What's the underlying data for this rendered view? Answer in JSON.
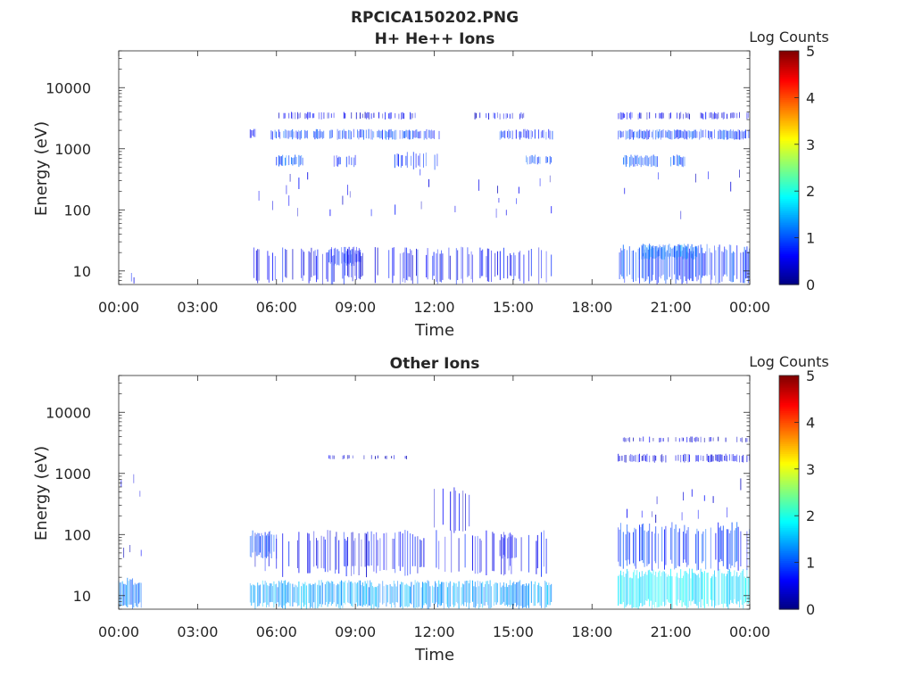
{
  "figure": {
    "title": "RPCICA150202.PNG"
  },
  "colorbar": {
    "label": "Log Counts",
    "ticks": [
      "0",
      "1",
      "2",
      "3",
      "4",
      "5"
    ],
    "range": [
      0,
      5
    ],
    "colormap": "jet"
  },
  "chart_data": [
    {
      "type": "heatmap",
      "title": "H+ He++ Ions",
      "xlabel": "Time",
      "ylabel": "Energy (eV)",
      "x_ticks": [
        "00:00",
        "03:00",
        "06:00",
        "09:00",
        "12:00",
        "15:00",
        "18:00",
        "21:00",
        "00:00"
      ],
      "xlim_hours": [
        0,
        24
      ],
      "y_scale": "log",
      "y_ticks": [
        "10",
        "100",
        "1000",
        "10000"
      ],
      "ylim": [
        6,
        40000
      ],
      "zlim": [
        0,
        5
      ],
      "data_blocks": [
        {
          "t0": 0.2,
          "t1": 0.8,
          "e0": 6,
          "e1": 20,
          "z": 0.6,
          "density": 0.25
        },
        {
          "t0": 0.1,
          "t1": 0.9,
          "e0": 60,
          "e1": 1500,
          "z": 0.5,
          "density": 0.1
        },
        {
          "t0": 5.0,
          "t1": 16.5,
          "e0": 6,
          "e1": 25,
          "z": 0.6,
          "density": 0.45
        },
        {
          "t0": 8.0,
          "t1": 9.2,
          "e0": 12,
          "e1": 25,
          "z": 0.8,
          "density": 0.8
        },
        {
          "t0": 5.0,
          "t1": 16.5,
          "e0": 80,
          "e1": 400,
          "z": 0.5,
          "density": 0.08
        },
        {
          "t0": 5.0,
          "t1": 5.2,
          "e0": 1500,
          "e1": 2200,
          "z": 0.8,
          "density": 0.9
        },
        {
          "t0": 5.8,
          "t1": 11.0,
          "e0": 1400,
          "e1": 2100,
          "z": 0.9,
          "density": 0.75
        },
        {
          "t0": 11.0,
          "t1": 12.5,
          "e0": 1400,
          "e1": 2100,
          "z": 0.8,
          "density": 0.55
        },
        {
          "t0": 14.5,
          "t1": 16.5,
          "e0": 1400,
          "e1": 2100,
          "z": 0.8,
          "density": 0.6
        },
        {
          "t0": 6.0,
          "t1": 11.5,
          "e0": 3000,
          "e1": 4000,
          "z": 0.5,
          "density": 0.45
        },
        {
          "t0": 13.5,
          "t1": 15.5,
          "e0": 3000,
          "e1": 4000,
          "z": 0.5,
          "density": 0.4
        },
        {
          "t0": 6.0,
          "t1": 7.0,
          "e0": 500,
          "e1": 800,
          "z": 1.0,
          "density": 0.8
        },
        {
          "t0": 8.0,
          "t1": 9.0,
          "e0": 500,
          "e1": 800,
          "z": 0.7,
          "density": 0.4
        },
        {
          "t0": 10.5,
          "t1": 12.2,
          "e0": 450,
          "e1": 900,
          "z": 0.8,
          "density": 0.5
        },
        {
          "t0": 15.5,
          "t1": 16.5,
          "e0": 550,
          "e1": 800,
          "z": 1.0,
          "density": 0.85
        },
        {
          "t0": 19.0,
          "t1": 24.0,
          "e0": 6,
          "e1": 28,
          "z": 0.9,
          "density": 0.85
        },
        {
          "t0": 19.8,
          "t1": 22.0,
          "e0": 15,
          "e1": 28,
          "z": 1.2,
          "density": 0.9
        },
        {
          "t0": 19.0,
          "t1": 24.0,
          "e0": 1400,
          "e1": 2100,
          "z": 0.9,
          "density": 0.9
        },
        {
          "t0": 19.0,
          "t1": 24.0,
          "e0": 3000,
          "e1": 4000,
          "z": 0.5,
          "density": 0.5
        },
        {
          "t0": 19.2,
          "t1": 20.5,
          "e0": 500,
          "e1": 800,
          "z": 1.0,
          "density": 0.85
        },
        {
          "t0": 21.0,
          "t1": 21.6,
          "e0": 500,
          "e1": 800,
          "z": 1.0,
          "density": 0.8
        },
        {
          "t0": 19.0,
          "t1": 24.0,
          "e0": 80,
          "e1": 400,
          "z": 0.5,
          "density": 0.08
        }
      ]
    },
    {
      "type": "heatmap",
      "title": "Other Ions",
      "xlabel": "Time",
      "ylabel": "Energy (eV)",
      "x_ticks": [
        "00:00",
        "03:00",
        "06:00",
        "09:00",
        "12:00",
        "15:00",
        "18:00",
        "21:00",
        "00:00"
      ],
      "xlim_hours": [
        0,
        24
      ],
      "y_scale": "log",
      "y_ticks": [
        "10",
        "100",
        "1000",
        "10000"
      ],
      "ylim": [
        6,
        40000
      ],
      "zlim": [
        0,
        5
      ],
      "data_blocks": [
        {
          "t0": 0.0,
          "t1": 0.9,
          "e0": 6,
          "e1": 20,
          "z": 1.2,
          "density": 0.95
        },
        {
          "t0": 0.0,
          "t1": 0.9,
          "e0": 40,
          "e1": 900,
          "z": 0.5,
          "density": 0.25
        },
        {
          "t0": 5.0,
          "t1": 16.5,
          "e0": 6,
          "e1": 18,
          "z": 1.4,
          "density": 0.9
        },
        {
          "t0": 5.0,
          "t1": 16.5,
          "e0": 20,
          "e1": 120,
          "z": 0.6,
          "density": 0.3
        },
        {
          "t0": 5.0,
          "t1": 6.0,
          "e0": 40,
          "e1": 120,
          "z": 0.9,
          "density": 0.8
        },
        {
          "t0": 12.0,
          "t1": 13.5,
          "e0": 100,
          "e1": 600,
          "z": 0.5,
          "density": 0.3
        },
        {
          "t0": 14.5,
          "t1": 15.2,
          "e0": 40,
          "e1": 100,
          "z": 0.7,
          "density": 0.6
        },
        {
          "t0": 8.0,
          "t1": 11.0,
          "e0": 1700,
          "e1": 2000,
          "z": 0.4,
          "density": 0.3
        },
        {
          "t0": 19.0,
          "t1": 24.0,
          "e0": 6,
          "e1": 28,
          "z": 1.8,
          "density": 0.95
        },
        {
          "t0": 19.0,
          "t1": 24.0,
          "e0": 25,
          "e1": 160,
          "z": 0.9,
          "density": 0.6
        },
        {
          "t0": 19.0,
          "t1": 24.0,
          "e0": 160,
          "e1": 700,
          "z": 0.5,
          "density": 0.2
        },
        {
          "t0": 19.0,
          "t1": 24.0,
          "e0": 1500,
          "e1": 2100,
          "z": 0.5,
          "density": 0.55
        },
        {
          "t0": 19.0,
          "t1": 24.0,
          "e0": 3200,
          "e1": 4000,
          "z": 0.4,
          "density": 0.35
        }
      ]
    }
  ]
}
